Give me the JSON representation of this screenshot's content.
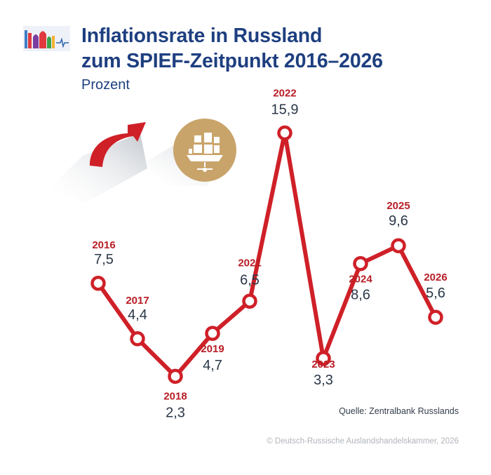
{
  "header": {
    "title_line1": "Inflationsrate in Russland",
    "title_line2": "zum SPIEF-Zeitpunkt 2016–2026",
    "subtitle": "Prozent"
  },
  "icons": [
    "spief-logo-icon",
    "rising-arrow-icon",
    "ship-emblem-icon"
  ],
  "colors": {
    "line": "#cf2028",
    "year_label": "#b81d25",
    "value_label": "#2a3748",
    "title": "#1e3f80",
    "emblem": "#c9a46a"
  },
  "chart_data": {
    "type": "line",
    "title": "Inflationsrate in Russland zum SPIEF-Zeitpunkt 2016–2026",
    "ylabel": "Prozent",
    "x": [
      "2016",
      "2017",
      "2018",
      "2019",
      "2021",
      "2022",
      "2023",
      "2024",
      "2025",
      "2026"
    ],
    "y": [
      7.5,
      4.4,
      2.3,
      4.7,
      6.5,
      15.9,
      3.3,
      8.6,
      9.6,
      5.6
    ],
    "value_labels": [
      "7,5",
      "4,4",
      "2,3",
      "4,7",
      "6,5",
      "15,9",
      "3,3",
      "8,6",
      "9,6",
      "5,6"
    ],
    "grid": false,
    "legend": "none"
  },
  "footer": {
    "source": "Quelle: Zentralbank Russlands",
    "copyright": "© Deutsch-Russische Auslandshandelskammer, 2026"
  }
}
